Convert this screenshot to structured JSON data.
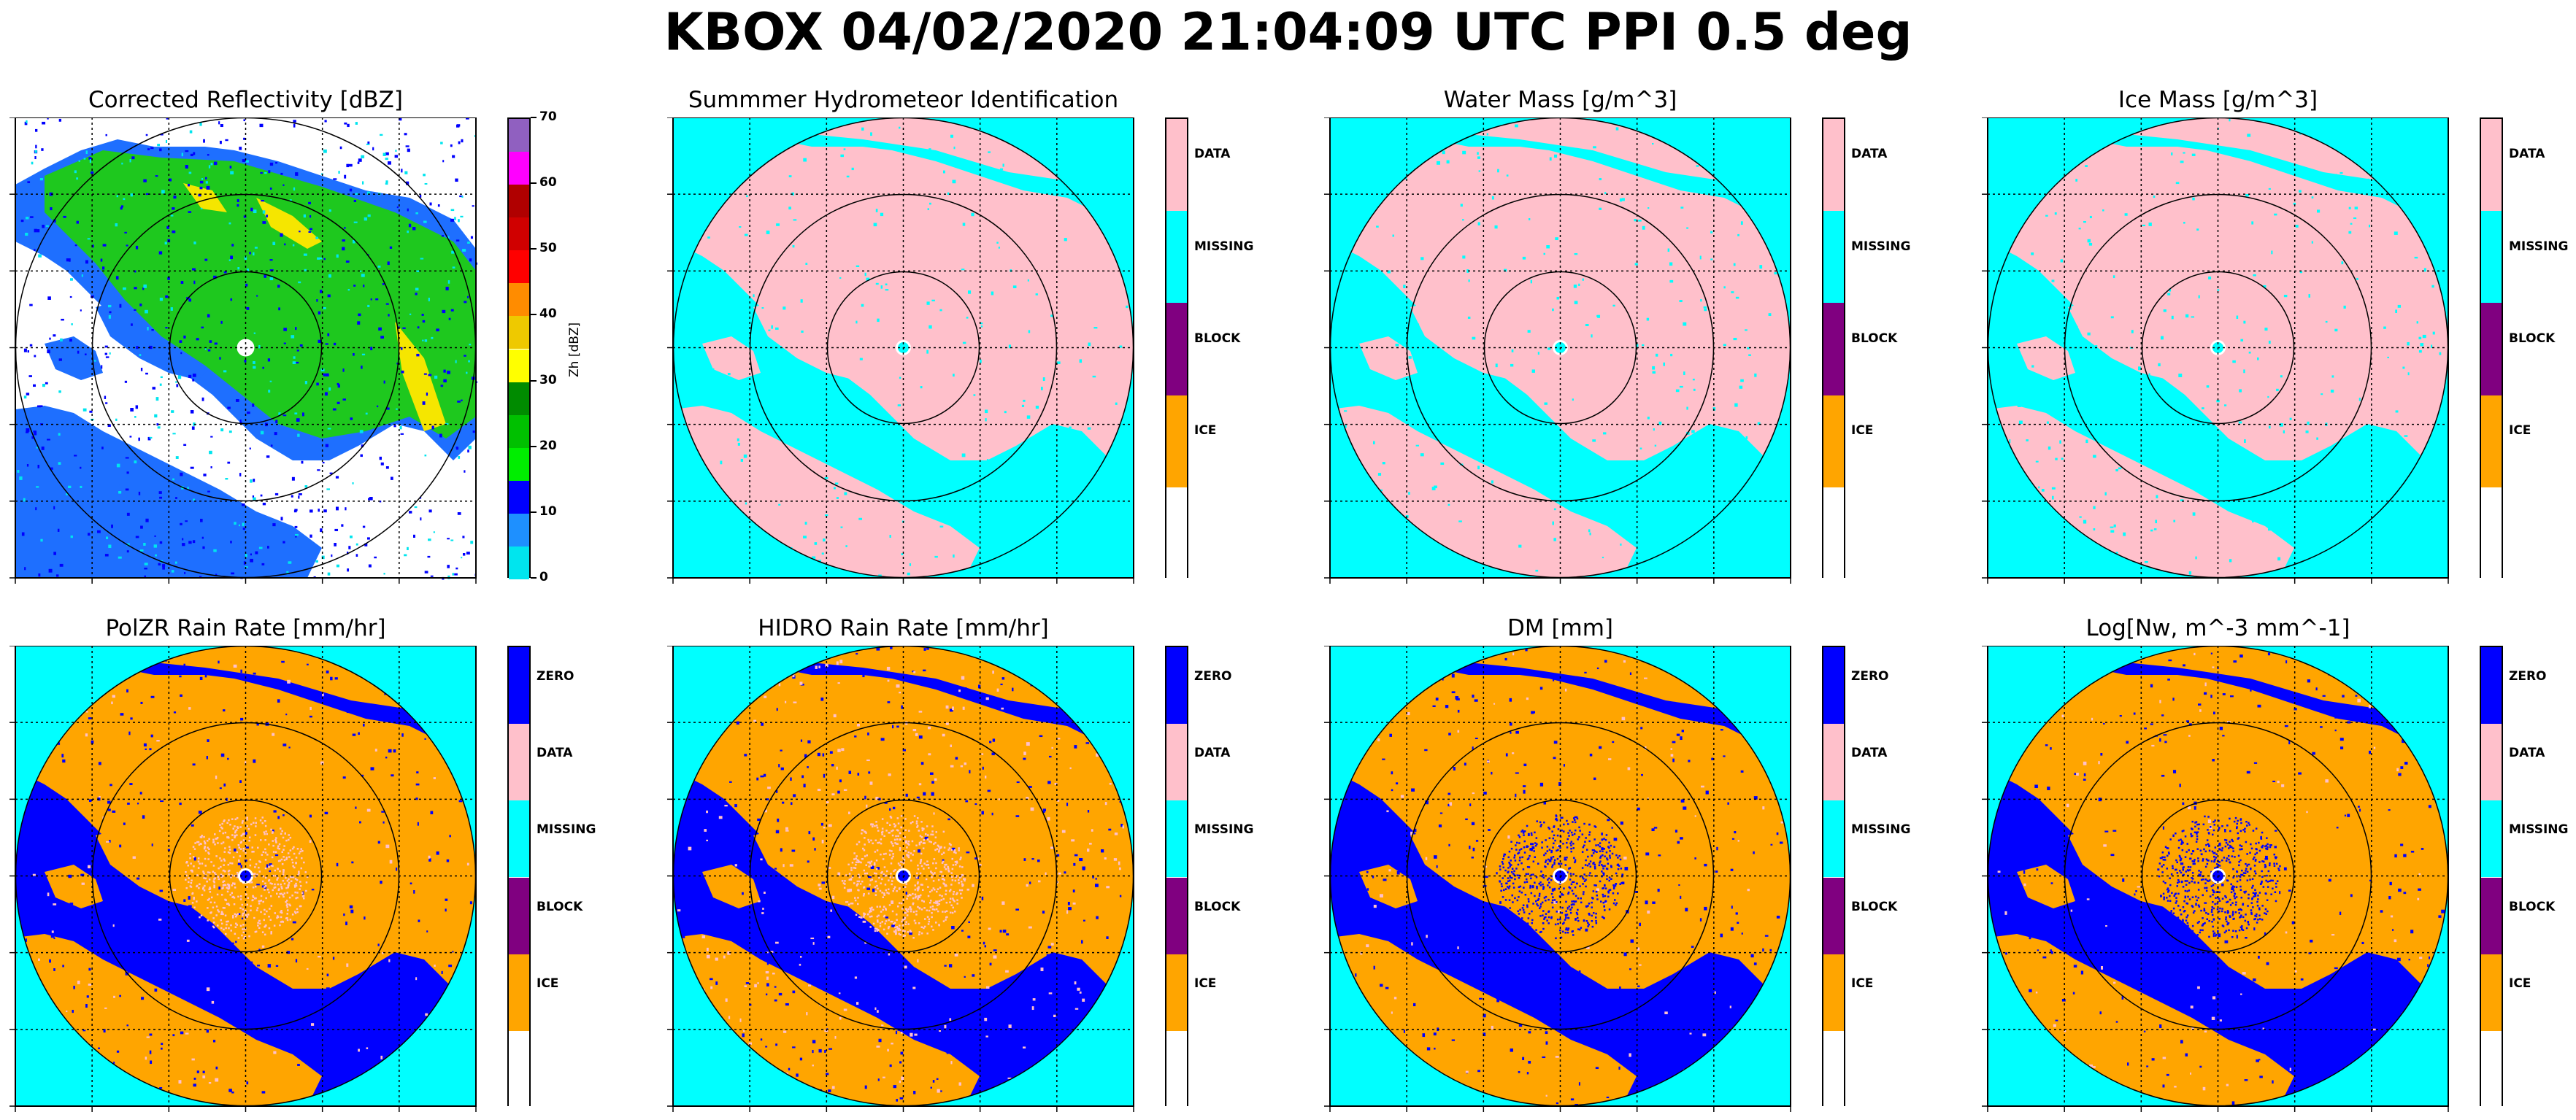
{
  "figure_title": "KBOX 04/02/2020 21:04:09 UTC PPI 0.5 deg",
  "colors": {
    "cyan": "#00ffff",
    "pink": "#ffc0cb",
    "orange": "#ffa500",
    "blue": "#0000ff",
    "purple": "#800080",
    "white": "#ffffff"
  },
  "chart_data": [
    {
      "type": "heatmap",
      "title": "Corrected Reflectivity [dBZ]",
      "colorbar": {
        "label": "Zh [dBZ]",
        "ticks": [
          "0",
          "10",
          "20",
          "30",
          "40",
          "50",
          "60",
          "70"
        ],
        "range": [
          0,
          70
        ],
        "colors": [
          "#00e5ee",
          "#1e90ff",
          "#0000ff",
          "#00ee00",
          "#00c000",
          "#008b00",
          "#ffff00",
          "#eec900",
          "#ff8c00",
          "#ff0000",
          "#d00000",
          "#b00000",
          "#ff00ff",
          "#9060c0"
        ]
      },
      "grid": true,
      "range_rings": 3
    },
    {
      "type": "heatmap",
      "title": "Summmer Hydrometeor Identification",
      "colorbar": {
        "categories": [
          "DATA",
          "MISSING",
          "BLOCK",
          "ICE",
          ""
        ],
        "colors": [
          "#ffc0cb",
          "#00ffff",
          "#800080",
          "#ffa500",
          "#ffffff"
        ]
      },
      "grid": true,
      "range_rings": 3
    },
    {
      "type": "heatmap",
      "title": "Water Mass [g/m^3]",
      "colorbar": {
        "categories": [
          "DATA",
          "MISSING",
          "BLOCK",
          "ICE",
          ""
        ],
        "colors": [
          "#ffc0cb",
          "#00ffff",
          "#800080",
          "#ffa500",
          "#ffffff"
        ]
      },
      "grid": true,
      "range_rings": 3
    },
    {
      "type": "heatmap",
      "title": "Ice Mass [g/m^3]",
      "colorbar": {
        "categories": [
          "DATA",
          "MISSING",
          "BLOCK",
          "ICE",
          ""
        ],
        "colors": [
          "#ffc0cb",
          "#00ffff",
          "#800080",
          "#ffa500",
          "#ffffff"
        ]
      },
      "grid": true,
      "range_rings": 3
    },
    {
      "type": "heatmap",
      "title": "PolZR Rain Rate [mm/hr]",
      "colorbar": {
        "categories": [
          "ZERO",
          "DATA",
          "MISSING",
          "BLOCK",
          "ICE",
          ""
        ],
        "colors": [
          "#0000ff",
          "#ffc0cb",
          "#00ffff",
          "#800080",
          "#ffa500",
          "#ffffff"
        ]
      },
      "grid": true,
      "range_rings": 3
    },
    {
      "type": "heatmap",
      "title": "HIDRO Rain Rate [mm/hr]",
      "colorbar": {
        "categories": [
          "ZERO",
          "DATA",
          "MISSING",
          "BLOCK",
          "ICE",
          ""
        ],
        "colors": [
          "#0000ff",
          "#ffc0cb",
          "#00ffff",
          "#800080",
          "#ffa500",
          "#ffffff"
        ]
      },
      "grid": true,
      "range_rings": 3
    },
    {
      "type": "heatmap",
      "title": "DM [mm]",
      "colorbar": {
        "categories": [
          "ZERO",
          "DATA",
          "MISSING",
          "BLOCK",
          "ICE",
          ""
        ],
        "colors": [
          "#0000ff",
          "#ffc0cb",
          "#00ffff",
          "#800080",
          "#ffa500",
          "#ffffff"
        ]
      },
      "grid": true,
      "range_rings": 3
    },
    {
      "type": "heatmap",
      "title": "Log[Nw, m^-3 mm^-1]",
      "colorbar": {
        "categories": [
          "ZERO",
          "DATA",
          "MISSING",
          "BLOCK",
          "ICE",
          ""
        ],
        "colors": [
          "#0000ff",
          "#ffc0cb",
          "#00ffff",
          "#800080",
          "#ffa500",
          "#ffffff"
        ]
      },
      "grid": true,
      "range_rings": 3
    }
  ]
}
